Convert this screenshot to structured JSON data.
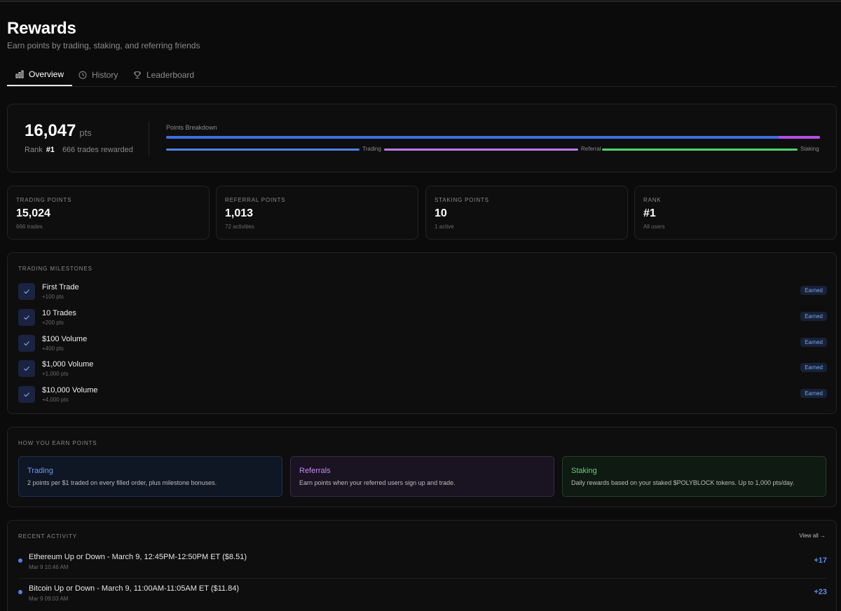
{
  "header": {
    "title": "Rewards",
    "subtitle": "Earn points by trading, staking, and referring friends"
  },
  "tabs": [
    {
      "label": "Overview",
      "icon": "bar-chart-icon",
      "active": true
    },
    {
      "label": "History",
      "icon": "clock-icon",
      "active": false
    },
    {
      "label": "Leaderboard",
      "icon": "trophy-icon",
      "active": false
    }
  ],
  "summary": {
    "total_points": "16,047",
    "unit": "pts",
    "rank_label": "Rank",
    "rank_value": "#1",
    "trades_rewarded": "666 trades rewarded",
    "breakdown_label": "Points Breakdown",
    "breakdown": [
      {
        "name": "Trading",
        "value": 15024,
        "color": "#3b6fe0"
      },
      {
        "name": "Referral",
        "value": 1013,
        "color": "#b24fe8"
      },
      {
        "name": "Staking",
        "value": 10,
        "color": "#3ec45a"
      }
    ],
    "legend_colors": [
      "#4f83e8",
      "#c07af0",
      "#4ed66c"
    ]
  },
  "stats": [
    {
      "label": "Trading Points",
      "value": "15,024",
      "sub": "666 trades"
    },
    {
      "label": "Referral Points",
      "value": "1,013",
      "sub": "72 activities"
    },
    {
      "label": "Staking Points",
      "value": "10",
      "sub": "1 active"
    },
    {
      "label": "Rank",
      "value": "#1",
      "sub": "All users"
    }
  ],
  "milestones": {
    "label": "Trading Milestones",
    "items": [
      {
        "name": "First Trade",
        "pts": "+100 pts",
        "badge": "Earned"
      },
      {
        "name": "10 Trades",
        "pts": "+200 pts",
        "badge": "Earned"
      },
      {
        "name": "$100 Volume",
        "pts": "+400 pts",
        "badge": "Earned"
      },
      {
        "name": "$1,000 Volume",
        "pts": "+1,000 pts",
        "badge": "Earned"
      },
      {
        "name": "$10,000 Volume",
        "pts": "+4,000 pts",
        "badge": "Earned"
      }
    ]
  },
  "earn": {
    "label": "How You Earn Points",
    "items": [
      {
        "title": "Trading",
        "text": "2 points per $1 traded on every filled order, plus milestone bonuses."
      },
      {
        "title": "Referrals",
        "text": "Earn points when your referred users sign up and trade."
      },
      {
        "title": "Staking",
        "text": "Daily rewards based on your staked $POLYBLOCK tokens. Up to 1,000 pts/day."
      }
    ]
  },
  "activity": {
    "label": "Recent Activity",
    "view_all": "View all →",
    "items": [
      {
        "title": "Ethereum Up or Down - March 9, 12:45PM-12:50PM ET ($8.51)",
        "time": "Mar 9 10:46 AM",
        "pts": "+17"
      },
      {
        "title": "Bitcoin Up or Down - March 9, 11:00AM-11:05AM ET ($11.84)",
        "time": "Mar 9 09:03 AM",
        "pts": "+23"
      }
    ]
  }
}
